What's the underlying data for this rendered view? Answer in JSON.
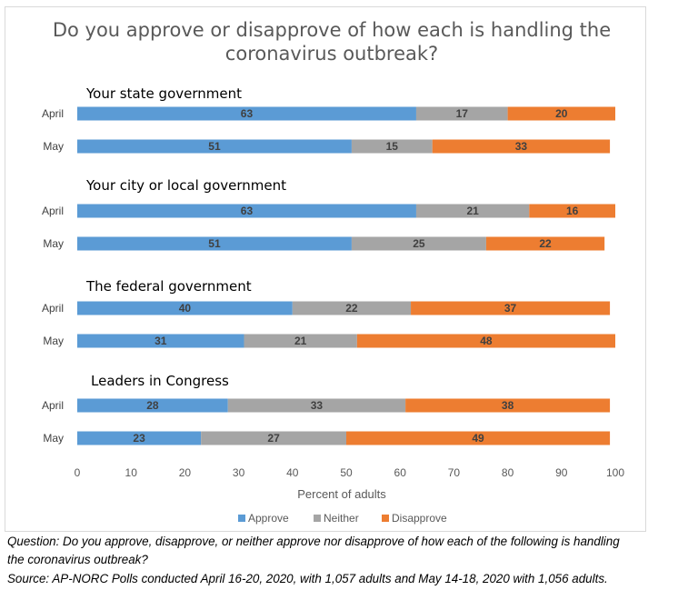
{
  "title_line1": "Do you approve or disapprove of how each is handling the",
  "title_line2": "coronavirus outbreak?",
  "chart_data": {
    "type": "bar",
    "orientation": "horizontal",
    "stacked": true,
    "title": "Do you approve or disapprove of how each is handling the coronavirus outbreak?",
    "xlabel": "Percent of adults",
    "xlim": [
      0,
      100
    ],
    "xticks": [
      0,
      10,
      20,
      30,
      40,
      50,
      60,
      70,
      80,
      90,
      100
    ],
    "legend_position": "bottom",
    "series_names": [
      "Approve",
      "Neither",
      "Disapprove"
    ],
    "colors": {
      "Approve": "#5b9bd5",
      "Neither": "#a5a5a5",
      "Disapprove": "#ed7d31"
    },
    "groups": [
      {
        "name": "Your state government",
        "rows": [
          {
            "label": "April",
            "values": [
              63,
              17,
              20
            ]
          },
          {
            "label": "May",
            "values": [
              51,
              15,
              33
            ]
          }
        ]
      },
      {
        "name": "Your city or local government",
        "rows": [
          {
            "label": "April",
            "values": [
              63,
              21,
              16
            ]
          },
          {
            "label": "May",
            "values": [
              51,
              25,
              22
            ]
          }
        ]
      },
      {
        "name": "The federal government",
        "rows": [
          {
            "label": "April",
            "values": [
              40,
              22,
              37
            ]
          },
          {
            "label": "May",
            "values": [
              31,
              21,
              48
            ]
          }
        ]
      },
      {
        "name": "Leaders in Congress",
        "rows": [
          {
            "label": "April",
            "values": [
              28,
              33,
              38
            ]
          },
          {
            "label": "May",
            "values": [
              23,
              27,
              49
            ]
          }
        ]
      }
    ]
  },
  "question_line1": "Question: Do you approve, disapprove, or neither approve nor disapprove of how each of the following is handling",
  "question_line2": "the coronavirus outbreak?",
  "source": "Source: AP-NORC Polls conducted April 16-20, 2020, with 1,057 adults and May 14-18, 2020 with 1,056 adults."
}
